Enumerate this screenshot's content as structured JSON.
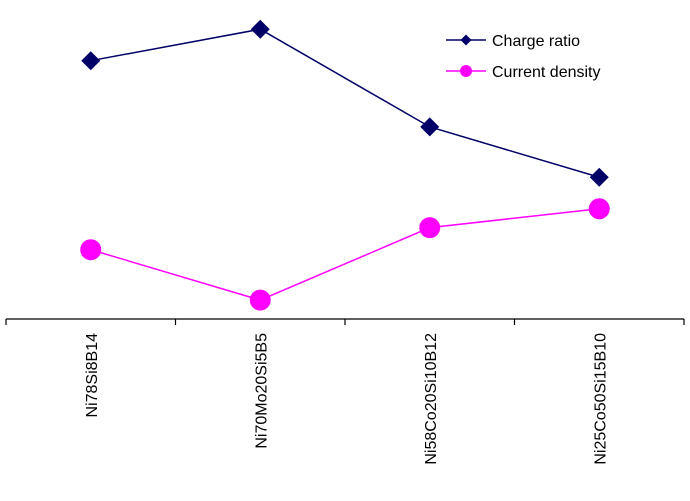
{
  "chart_data": {
    "type": "line",
    "categories": [
      "Ni78Si8B14",
      "Ni70Mo20Si5B5",
      "Ni58Co20Si10B12",
      "Ni25Co50Si15B10"
    ],
    "series": [
      {
        "name": "Charge ratio",
        "values": [
          0.82,
          0.92,
          0.61,
          0.45
        ],
        "color": "#000066",
        "marker": "diamond"
      },
      {
        "name": "Current density",
        "values": [
          0.22,
          0.06,
          0.29,
          0.35
        ],
        "color": "#ff00ff",
        "marker": "circle"
      }
    ],
    "title": "",
    "xlabel": "",
    "ylabel": "",
    "ylim": [
      0,
      1
    ],
    "y_axis_visible": false,
    "grid": false,
    "legend": {
      "position": "top-right"
    }
  }
}
